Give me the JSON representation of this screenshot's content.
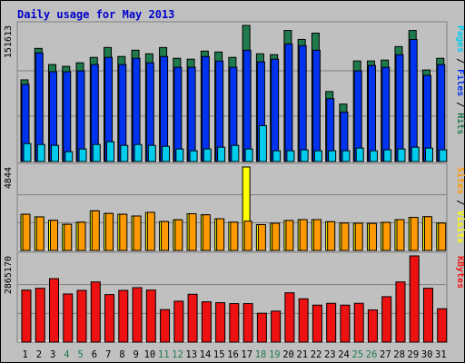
{
  "chart_data": {
    "type": "bar",
    "title": "Daily usage for May 2013",
    "categories": [
      "1",
      "2",
      "3",
      "4",
      "5",
      "6",
      "7",
      "8",
      "9",
      "10",
      "11",
      "12",
      "13",
      "14",
      "15",
      "16",
      "17",
      "18",
      "19",
      "20",
      "21",
      "22",
      "23",
      "24",
      "25",
      "26",
      "27",
      "28",
      "29",
      "30",
      "31"
    ],
    "weekend_days": [
      "4",
      "5",
      "11",
      "12",
      "18",
      "19",
      "25",
      "26"
    ],
    "colors": {
      "title": "#0000cc",
      "background": "#c0c0c0",
      "hits": "#1f7a4c",
      "files": "#0033ee",
      "pages": "#00ccee",
      "visits": "#ffff00",
      "sites": "#ff9900",
      "kbytes": "#ee1111",
      "weekend_label": "#1f7a4c",
      "weekday_label": "#000000"
    },
    "panels": [
      {
        "id": "hits-files-pages",
        "ymax_label": "151613",
        "ymax": 151613,
        "right_label": [
          {
            "text": "Pages",
            "color": "#00ccee"
          },
          {
            "text": " / ",
            "color": "#000000"
          },
          {
            "text": "Files",
            "color": "#0033ee"
          },
          {
            "text": " / ",
            "color": "#000000"
          },
          {
            "text": "Hits",
            "color": "#1f7a4c"
          }
        ],
        "series": [
          {
            "name": "Hits",
            "values": [
              91000,
              126000,
              108000,
              106000,
              110000,
              116000,
              127000,
              117000,
              124000,
              120000,
              127000,
              115000,
              114000,
              123000,
              122000,
              116000,
              151613,
              120000,
              119000,
              146000,
              136000,
              143000,
              78000,
              64000,
              112000,
              112000,
              113000,
              128000,
              146000,
              102000,
              115000
            ]
          },
          {
            "name": "Files",
            "values": [
              86000,
              121000,
              100000,
              100000,
              101000,
              108000,
              116000,
              108000,
              115000,
              110000,
              117000,
              105000,
              105000,
              117000,
              112000,
              105000,
              124000,
              111000,
              114000,
              131000,
              129000,
              124000,
              70000,
              55000,
              101000,
              107000,
              105000,
              119000,
              136000,
              96000,
              108000
            ]
          },
          {
            "name": "Pages",
            "values": [
              20000,
              19000,
              18000,
              11000,
              14000,
              19000,
              22000,
              18000,
              19000,
              18000,
              17000,
              14000,
              12000,
              14000,
              16000,
              18000,
              14000,
              40000,
              12000,
              12000,
              13000,
              12000,
              12000,
              12000,
              15000,
              12000,
              13000,
              14000,
              16000,
              15000,
              13000
            ]
          }
        ]
      },
      {
        "id": "visits-sites",
        "ymax_label": "4844",
        "ymax": 4844,
        "right_label": [
          {
            "text": "Sites",
            "color": "#ff9900"
          },
          {
            "text": " / ",
            "color": "#000000"
          },
          {
            "text": "Visits",
            "color": "#ffff00"
          }
        ],
        "series": [
          {
            "name": "Visits",
            "values": [
              2100,
              1950,
              1750,
              1520,
              1640,
              2300,
              2150,
              2100,
              2000,
              2210,
              1680,
              1780,
              2130,
              2070,
              1840,
              1640,
              4844,
              1500,
              1580,
              1740,
              1790,
              1790,
              1670,
              1590,
              1580,
              1570,
              1630,
              1790,
              1920,
              1960,
              1590
            ]
          },
          {
            "name": "Sites",
            "values": [
              2100,
              1950,
              1750,
              1520,
              1640,
              2300,
              2150,
              2100,
              2000,
              2210,
              1680,
              1780,
              2130,
              2070,
              1840,
              1640,
              1700,
              1500,
              1580,
              1740,
              1790,
              1790,
              1670,
              1590,
              1580,
              1570,
              1630,
              1790,
              1920,
              1960,
              1590
            ]
          }
        ]
      },
      {
        "id": "kbytes",
        "ymax_label": "2865170",
        "ymax": 2865170,
        "right_label": [
          {
            "text": "KBytes",
            "color": "#ee1111"
          }
        ],
        "series": [
          {
            "name": "KBytes",
            "values": [
              1730000,
              1790000,
              2110000,
              1600000,
              1720000,
              2000000,
              1580000,
              1720000,
              1810000,
              1730000,
              1080000,
              1360000,
              1590000,
              1340000,
              1310000,
              1280000,
              1280000,
              960000,
              1030000,
              1640000,
              1440000,
              1230000,
              1290000,
              1230000,
              1290000,
              1070000,
              1510000,
              2000000,
              2865170,
              1790000,
              1110000
            ]
          }
        ]
      }
    ]
  }
}
